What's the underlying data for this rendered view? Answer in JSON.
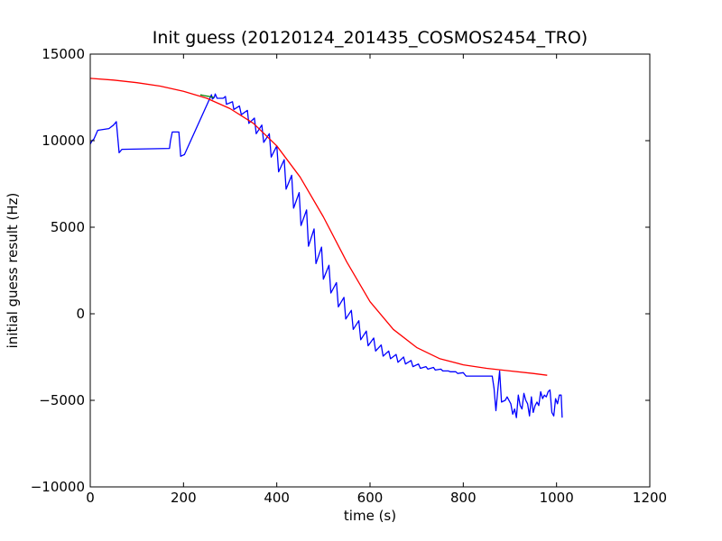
{
  "chart_data": {
    "type": "line",
    "title": "Init guess (20120124_201435_COSMOS2454_TRO)",
    "xlabel": "time (s)",
    "ylabel": "initial guess result (Hz)",
    "xlim": [
      0,
      1200
    ],
    "ylim": [
      -10000,
      15000
    ],
    "xticks": [
      0,
      200,
      400,
      600,
      800,
      1000,
      1200
    ],
    "yticks": [
      -10000,
      -5000,
      0,
      5000,
      10000,
      15000
    ],
    "xtick_labels": [
      "0",
      "200",
      "400",
      "600",
      "800",
      "1000",
      "1200"
    ],
    "ytick_labels": [
      "−10000",
      "−5000",
      "0",
      "5000",
      "10000",
      "15000"
    ],
    "grid": false,
    "legend": "none",
    "series": [
      {
        "color": "#0000ff",
        "points": [
          [
            0,
            9800
          ],
          [
            4,
            10000
          ],
          [
            8,
            10100
          ],
          [
            16,
            10600
          ],
          [
            40,
            10700
          ],
          [
            50,
            10900
          ],
          [
            56,
            11100
          ],
          [
            62,
            9300
          ],
          [
            68,
            9500
          ],
          [
            170,
            9550
          ],
          [
            172,
            10000
          ],
          [
            176,
            10500
          ],
          [
            190,
            10500
          ],
          [
            194,
            9100
          ],
          [
            202,
            9200
          ],
          [
            260,
            12650
          ],
          [
            262,
            12400
          ],
          [
            266,
            12500
          ],
          [
            268,
            12700
          ],
          [
            272,
            12450
          ],
          [
            285,
            12450
          ],
          [
            290,
            12550
          ],
          [
            292,
            12100
          ],
          [
            305,
            12250
          ],
          [
            308,
            11800
          ],
          [
            320,
            12000
          ],
          [
            324,
            11500
          ],
          [
            337,
            11750
          ],
          [
            340,
            11000
          ],
          [
            352,
            11300
          ],
          [
            356,
            10400
          ],
          [
            368,
            10900
          ],
          [
            372,
            9900
          ],
          [
            384,
            10400
          ],
          [
            388,
            9050
          ],
          [
            400,
            9700
          ],
          [
            404,
            8200
          ],
          [
            416,
            8900
          ],
          [
            420,
            7200
          ],
          [
            432,
            8000
          ],
          [
            436,
            6100
          ],
          [
            448,
            7000
          ],
          [
            452,
            5100
          ],
          [
            464,
            6000
          ],
          [
            468,
            3900
          ],
          [
            480,
            4900
          ],
          [
            484,
            2900
          ],
          [
            496,
            3850
          ],
          [
            500,
            2000
          ],
          [
            512,
            2800
          ],
          [
            516,
            1200
          ],
          [
            528,
            1800
          ],
          [
            532,
            400
          ],
          [
            544,
            950
          ],
          [
            548,
            -300
          ],
          [
            560,
            200
          ],
          [
            564,
            -900
          ],
          [
            576,
            -400
          ],
          [
            580,
            -1500
          ],
          [
            592,
            -1000
          ],
          [
            596,
            -1850
          ],
          [
            608,
            -1400
          ],
          [
            612,
            -2150
          ],
          [
            624,
            -1800
          ],
          [
            628,
            -2450
          ],
          [
            640,
            -2150
          ],
          [
            644,
            -2600
          ],
          [
            656,
            -2350
          ],
          [
            660,
            -2800
          ],
          [
            672,
            -2500
          ],
          [
            676,
            -2900
          ],
          [
            688,
            -2700
          ],
          [
            692,
            -3050
          ],
          [
            704,
            -2900
          ],
          [
            708,
            -3150
          ],
          [
            720,
            -3050
          ],
          [
            724,
            -3200
          ],
          [
            736,
            -3100
          ],
          [
            740,
            -3250
          ],
          [
            752,
            -3200
          ],
          [
            756,
            -3300
          ],
          [
            768,
            -3300
          ],
          [
            772,
            -3350
          ],
          [
            784,
            -3350
          ],
          [
            788,
            -3450
          ],
          [
            800,
            -3400
          ],
          [
            806,
            -3600
          ],
          [
            862,
            -3600
          ],
          [
            866,
            -4300
          ],
          [
            870,
            -5600
          ],
          [
            874,
            -4400
          ],
          [
            878,
            -3300
          ],
          [
            882,
            -5100
          ],
          [
            890,
            -5000
          ],
          [
            894,
            -4800
          ],
          [
            902,
            -5200
          ],
          [
            906,
            -5800
          ],
          [
            910,
            -5500
          ],
          [
            914,
            -6000
          ],
          [
            918,
            -4700
          ],
          [
            922,
            -5300
          ],
          [
            926,
            -5500
          ],
          [
            930,
            -4600
          ],
          [
            934,
            -5000
          ],
          [
            938,
            -5200
          ],
          [
            942,
            -5900
          ],
          [
            946,
            -4800
          ],
          [
            950,
            -5700
          ],
          [
            954,
            -5300
          ],
          [
            958,
            -5100
          ],
          [
            962,
            -5300
          ],
          [
            966,
            -4500
          ],
          [
            970,
            -4900
          ],
          [
            974,
            -4700
          ],
          [
            978,
            -4800
          ],
          [
            982,
            -4500
          ],
          [
            986,
            -4400
          ],
          [
            990,
            -5700
          ],
          [
            994,
            -5900
          ],
          [
            998,
            -4900
          ],
          [
            1002,
            -5200
          ],
          [
            1006,
            -4700
          ],
          [
            1010,
            -4700
          ],
          [
            1012,
            -6000
          ]
        ]
      },
      {
        "color": "#ff0000",
        "points": [
          [
            0,
            13600
          ],
          [
            50,
            13500
          ],
          [
            100,
            13350
          ],
          [
            150,
            13150
          ],
          [
            200,
            12850
          ],
          [
            250,
            12450
          ],
          [
            300,
            11850
          ],
          [
            350,
            11000
          ],
          [
            400,
            9700
          ],
          [
            450,
            7900
          ],
          [
            500,
            5600
          ],
          [
            550,
            3000
          ],
          [
            600,
            700
          ],
          [
            650,
            -900
          ],
          [
            700,
            -1950
          ],
          [
            750,
            -2600
          ],
          [
            800,
            -2950
          ],
          [
            850,
            -3150
          ],
          [
            900,
            -3300
          ],
          [
            950,
            -3450
          ],
          [
            980,
            -3550
          ]
        ]
      },
      {
        "color": "#008000",
        "points": [
          [
            236,
            12650
          ],
          [
            245,
            12600
          ],
          [
            255,
            12550
          ],
          [
            265,
            12500
          ]
        ]
      }
    ]
  }
}
